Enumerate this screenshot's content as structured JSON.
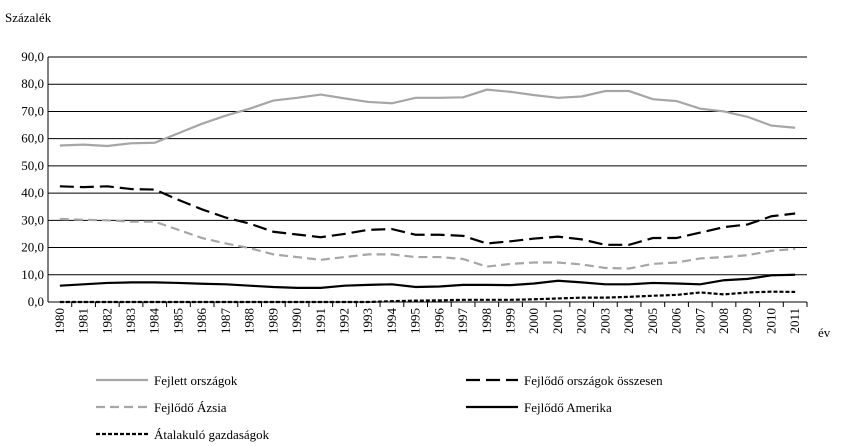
{
  "chart_data": {
    "type": "line",
    "y_label": "Százalék",
    "x_label": "év",
    "categories": [
      "1980",
      "1981",
      "1982",
      "1983",
      "1984",
      "1985",
      "1986",
      "1987",
      "1988",
      "1989",
      "1990",
      "1991",
      "1992",
      "1993",
      "1994",
      "1995",
      "1996",
      "1997",
      "1998",
      "1999",
      "2000",
      "2001",
      "2002",
      "2003",
      "2004",
      "2005",
      "2006",
      "2007",
      "2008",
      "2009",
      "2010",
      "2011"
    ],
    "ylim": [
      0,
      90
    ],
    "yticks": [
      {
        "value": 0,
        "label": "0,0"
      },
      {
        "value": 10,
        "label": "10,0"
      },
      {
        "value": 20,
        "label": "20,0"
      },
      {
        "value": 30,
        "label": "30,0"
      },
      {
        "value": 40,
        "label": "40,0"
      },
      {
        "value": 50,
        "label": "50,0"
      },
      {
        "value": 60,
        "label": "60,0"
      },
      {
        "value": 70,
        "label": "70,0"
      },
      {
        "value": 80,
        "label": "80,0"
      },
      {
        "value": 90,
        "label": "90,0"
      }
    ],
    "grid": true,
    "legend": "bottom",
    "series": [
      {
        "name": "Fejlett országok",
        "color": "#a6a6a6",
        "line_style": "solid",
        "values": [
          57.5,
          57.8,
          57.3,
          58.3,
          58.5,
          62,
          65.5,
          68.5,
          71,
          74,
          75,
          76.2,
          74.8,
          73.5,
          73,
          75,
          75,
          75.2,
          78,
          77.2,
          76,
          75,
          75.5,
          77.5,
          77.5,
          74.5,
          73.8,
          71,
          70,
          68,
          64.8,
          64
        ]
      },
      {
        "name": "Fejlődő országok összesen",
        "color": "#000000",
        "line_style": "long-dash",
        "values": [
          42.5,
          42.2,
          42.5,
          41.5,
          41.3,
          37.5,
          34,
          31,
          28.8,
          25.8,
          24.8,
          23.8,
          25,
          26.5,
          26.8,
          24.7,
          24.7,
          24.3,
          21.5,
          22.3,
          23.3,
          24,
          23,
          21,
          21,
          23.5,
          23.5,
          25.5,
          27.5,
          28.5,
          31.5,
          32.5
        ]
      },
      {
        "name": "Fejlődő Ázsia",
        "color": "#a6a6a6",
        "line_style": "dash",
        "values": [
          30.5,
          30.2,
          30,
          29.5,
          29.5,
          26.5,
          23.5,
          21.5,
          19.8,
          17.5,
          16.5,
          15.5,
          16.5,
          17.5,
          17.5,
          16.5,
          16.5,
          15.8,
          13,
          14,
          14.5,
          14.5,
          13.8,
          12.5,
          12.3,
          14,
          14.5,
          16,
          16.5,
          17.2,
          18.8,
          19.5
        ]
      },
      {
        "name": "Fejlődő Amerika",
        "color": "#000000",
        "line_style": "solid",
        "values": [
          6,
          6.5,
          7,
          7.2,
          7.2,
          7,
          6.7,
          6.5,
          6,
          5.5,
          5.2,
          5.2,
          6,
          6.3,
          6.5,
          5.5,
          5.7,
          6.3,
          6.3,
          6.2,
          6.8,
          7.8,
          7.2,
          6.5,
          6.5,
          7,
          6.8,
          6.5,
          8,
          8.5,
          9.8,
          10
        ]
      },
      {
        "name": "Átalakuló gazdaságok",
        "color": "#000000",
        "line_style": "short-dash",
        "values": [
          0,
          0,
          0,
          0,
          0,
          0,
          0,
          0,
          0,
          0,
          0,
          0,
          0,
          0,
          0.3,
          0.5,
          0.6,
          0.8,
          0.8,
          0.8,
          1,
          1.3,
          1.6,
          1.6,
          1.9,
          2.3,
          2.6,
          3.5,
          2.8,
          3.5,
          3.8,
          3.7
        ]
      }
    ]
  }
}
